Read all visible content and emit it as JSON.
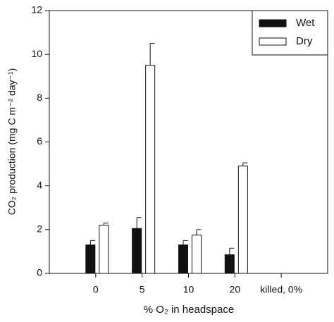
{
  "chart_data": {
    "type": "bar",
    "x_label": "% O₂ in headspace",
    "y_label": "CO₂ production (mg C m⁻² day⁻¹)",
    "categories": [
      "0",
      "5",
      "10",
      "20",
      "killed, 0%"
    ],
    "series": [
      {
        "name": "Wet",
        "color": "#111111",
        "values": [
          1.3,
          2.05,
          1.3,
          0.85,
          0
        ],
        "errors": [
          0.2,
          0.5,
          0.2,
          0.3,
          0
        ]
      },
      {
        "name": "Dry",
        "color": "#ffffff",
        "values": [
          2.2,
          9.5,
          1.75,
          4.9,
          0
        ],
        "errors": [
          0.1,
          1.0,
          0.25,
          0.15,
          0
        ]
      }
    ],
    "ylim": [
      0,
      12
    ],
    "yticks": [
      0,
      2,
      4,
      6,
      8,
      10,
      12
    ],
    "legend": "upper right"
  }
}
